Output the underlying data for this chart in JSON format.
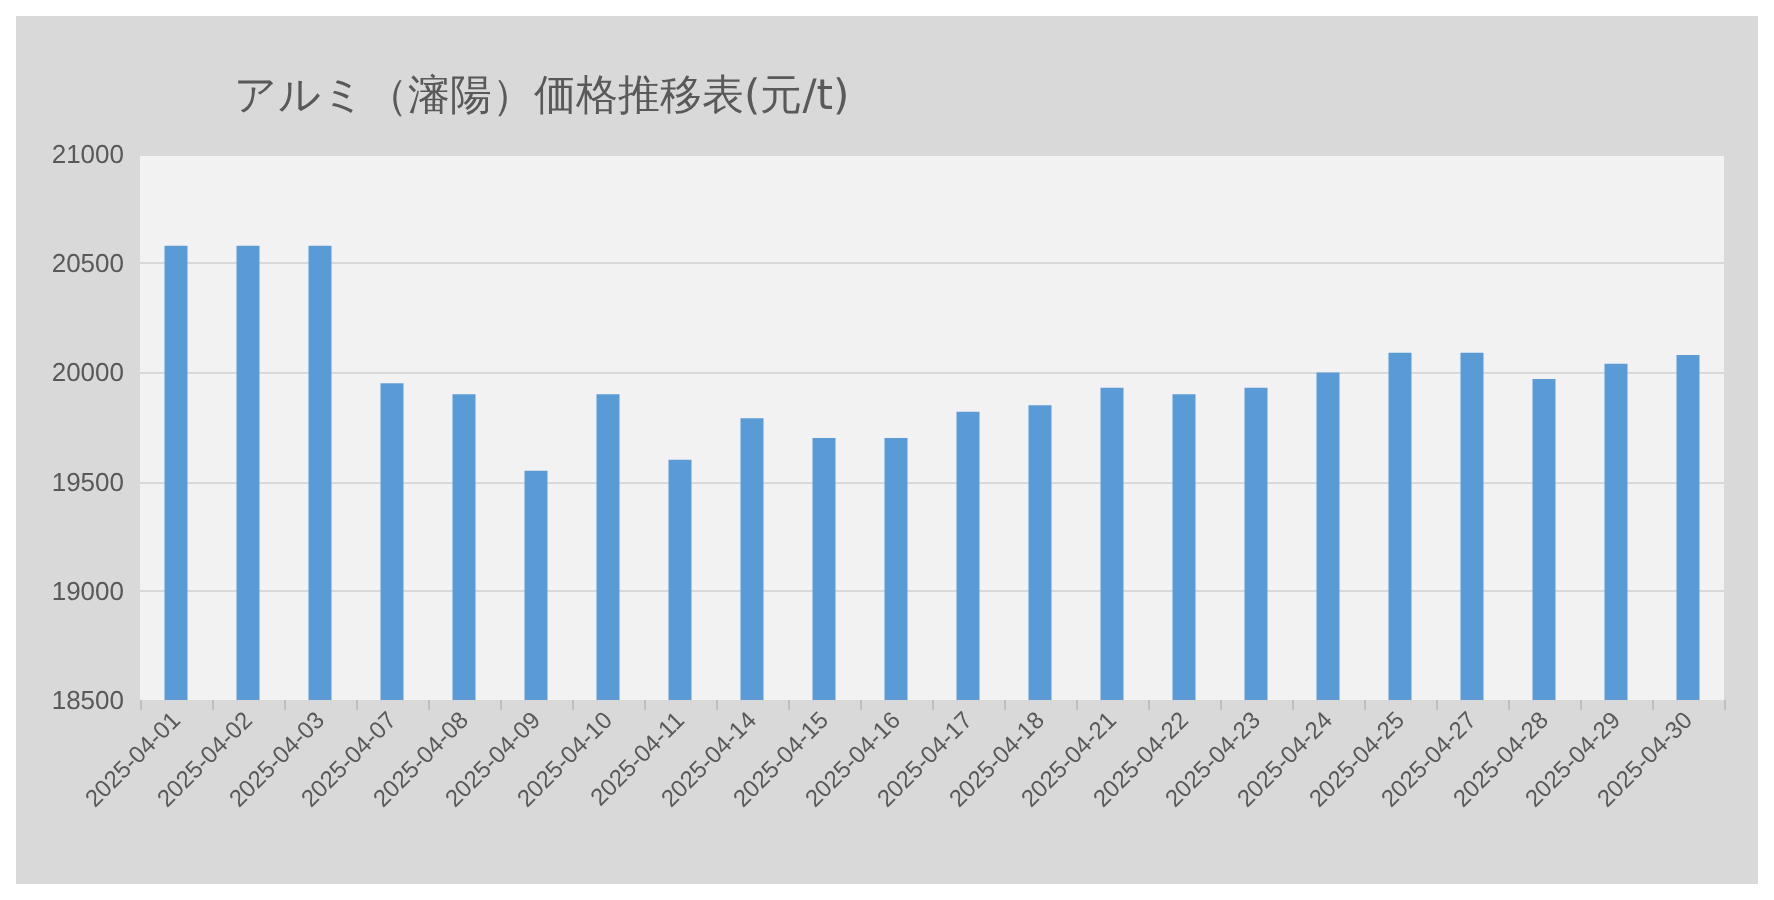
{
  "chart_data": {
    "type": "bar",
    "title": "アルミ（瀋陽）価格推移表(元/t)",
    "categories": [
      "2025-04-01",
      "2025-04-02",
      "2025-04-03",
      "2025-04-07",
      "2025-04-08",
      "2025-04-09",
      "2025-04-10",
      "2025-04-11",
      "2025-04-14",
      "2025-04-15",
      "2025-04-16",
      "2025-04-17",
      "2025-04-18",
      "2025-04-21",
      "2025-04-22",
      "2025-04-23",
      "2025-04-24",
      "2025-04-25",
      "2025-04-27",
      "2025-04-28",
      "2025-04-29",
      "2025-04-30"
    ],
    "values": [
      20580,
      20580,
      20580,
      19950,
      19900,
      19550,
      19900,
      19600,
      19790,
      19700,
      19700,
      19820,
      19850,
      19930,
      19900,
      19930,
      20000,
      20090,
      20090,
      19970,
      20040,
      20080
    ],
    "color": "#5b9bd5",
    "ylim": [
      18500,
      21000
    ],
    "yticks": [
      18500,
      19000,
      19500,
      20000,
      20500,
      21000
    ],
    "grid": "y"
  }
}
